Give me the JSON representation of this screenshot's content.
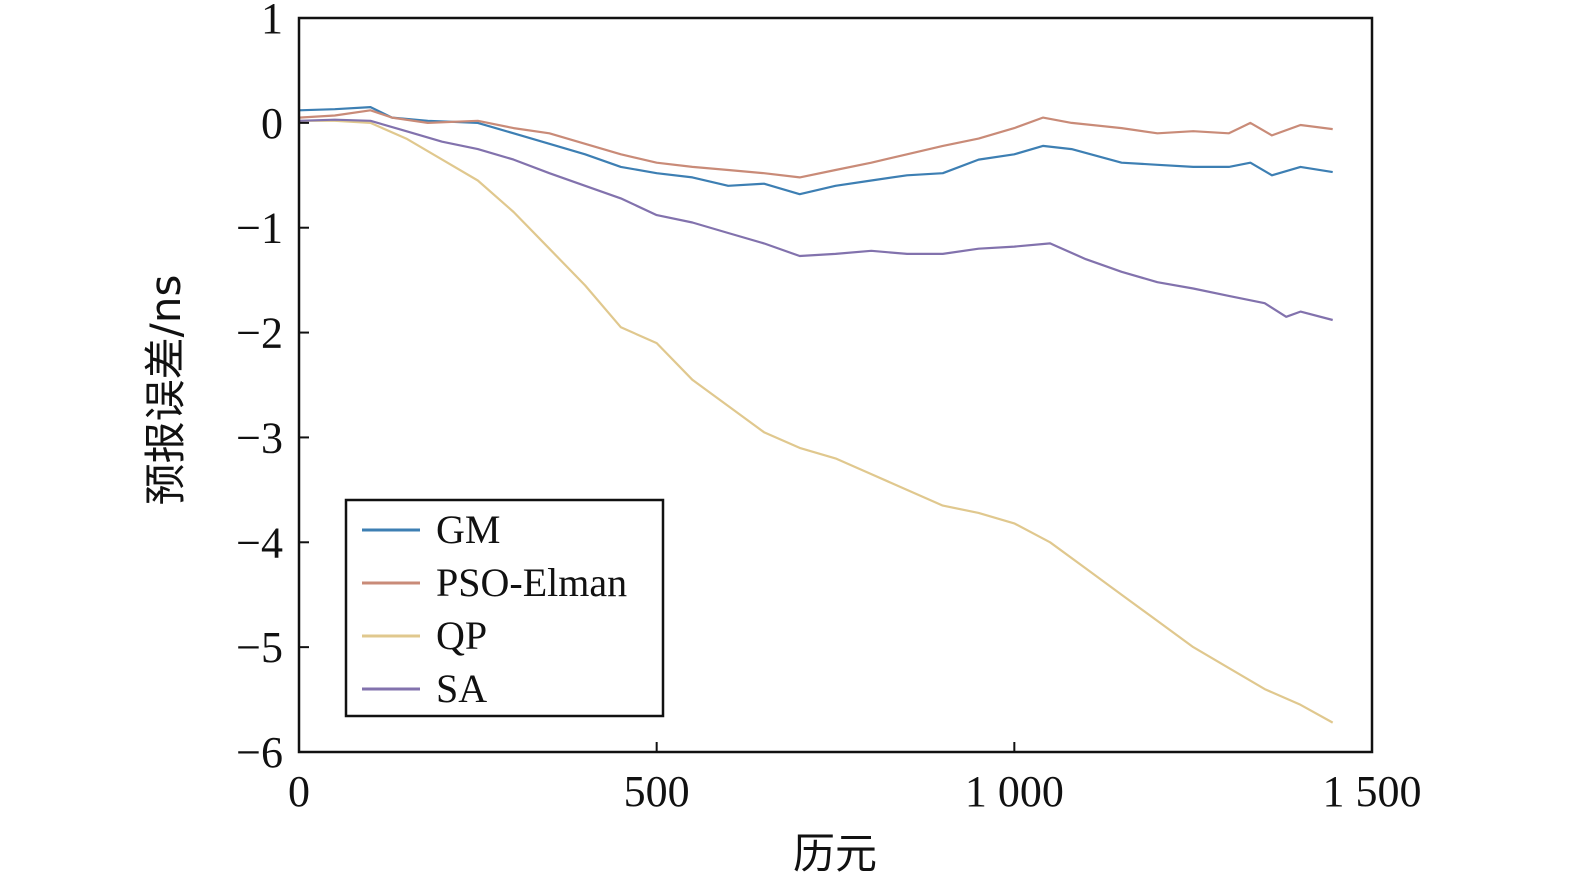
{
  "chart_data": {
    "type": "line",
    "title": "",
    "xlabel": "历元",
    "ylabel": "预报误差/ns",
    "xlim": [
      0,
      1500
    ],
    "ylim": [
      -6,
      1
    ],
    "x_ticks": [
      {
        "value": 0,
        "label": "0"
      },
      {
        "value": 500,
        "label": "500"
      },
      {
        "value": 1000,
        "label": "1 000"
      },
      {
        "value": 1500,
        "label": "1 500"
      }
    ],
    "y_ticks": [
      {
        "value": 1,
        "label": "1"
      },
      {
        "value": 0,
        "label": "0"
      },
      {
        "value": -1,
        "label": "−1"
      },
      {
        "value": -2,
        "label": "−2"
      },
      {
        "value": -3,
        "label": "−3"
      },
      {
        "value": -4,
        "label": "−4"
      },
      {
        "value": -5,
        "label": "−5"
      },
      {
        "value": -6,
        "label": "−6"
      }
    ],
    "grid": false,
    "legend_position": "bottom-left",
    "series": [
      {
        "name": "GM",
        "color": "#3d7fb3",
        "x": [
          0,
          50,
          100,
          130,
          180,
          250,
          300,
          350,
          400,
          450,
          500,
          550,
          600,
          650,
          700,
          750,
          800,
          850,
          900,
          950,
          1000,
          1040,
          1080,
          1150,
          1200,
          1250,
          1300,
          1330,
          1360,
          1400,
          1445
        ],
        "y": [
          0.12,
          0.13,
          0.15,
          0.05,
          0.02,
          0.0,
          -0.1,
          -0.2,
          -0.3,
          -0.42,
          -0.48,
          -0.52,
          -0.6,
          -0.58,
          -0.68,
          -0.6,
          -0.55,
          -0.5,
          -0.48,
          -0.35,
          -0.3,
          -0.22,
          -0.25,
          -0.38,
          -0.4,
          -0.42,
          -0.42,
          -0.38,
          -0.5,
          -0.42,
          -0.47
        ]
      },
      {
        "name": "PSO-Elman",
        "color": "#c98b78",
        "x": [
          0,
          50,
          100,
          130,
          180,
          250,
          300,
          350,
          400,
          450,
          500,
          550,
          600,
          650,
          700,
          750,
          800,
          850,
          900,
          950,
          1000,
          1040,
          1080,
          1150,
          1200,
          1250,
          1300,
          1330,
          1360,
          1400,
          1445
        ],
        "y": [
          0.05,
          0.07,
          0.12,
          0.05,
          0.0,
          0.02,
          -0.05,
          -0.1,
          -0.2,
          -0.3,
          -0.38,
          -0.42,
          -0.45,
          -0.48,
          -0.52,
          -0.45,
          -0.38,
          -0.3,
          -0.22,
          -0.15,
          -0.05,
          0.05,
          0.0,
          -0.05,
          -0.1,
          -0.08,
          -0.1,
          0.0,
          -0.12,
          -0.02,
          -0.06
        ]
      },
      {
        "name": "QP",
        "color": "#e0c88e",
        "x": [
          0,
          50,
          100,
          150,
          200,
          250,
          300,
          350,
          400,
          450,
          500,
          550,
          600,
          650,
          700,
          750,
          800,
          850,
          900,
          950,
          1000,
          1050,
          1100,
          1150,
          1200,
          1250,
          1300,
          1350,
          1400,
          1445
        ],
        "y": [
          0.02,
          0.02,
          0.0,
          -0.15,
          -0.35,
          -0.55,
          -0.85,
          -1.2,
          -1.55,
          -1.95,
          -2.1,
          -2.45,
          -2.7,
          -2.95,
          -3.1,
          -3.2,
          -3.35,
          -3.5,
          -3.65,
          -3.72,
          -3.82,
          -4.0,
          -4.25,
          -4.5,
          -4.75,
          -5.0,
          -5.2,
          -5.4,
          -5.55,
          -5.72
        ]
      },
      {
        "name": "SA",
        "color": "#8272ad",
        "x": [
          0,
          50,
          100,
          150,
          200,
          250,
          300,
          350,
          400,
          450,
          500,
          550,
          600,
          650,
          700,
          750,
          800,
          850,
          900,
          950,
          1000,
          1050,
          1100,
          1150,
          1200,
          1250,
          1300,
          1350,
          1380,
          1400,
          1445
        ],
        "y": [
          0.02,
          0.03,
          0.02,
          -0.08,
          -0.18,
          -0.25,
          -0.35,
          -0.48,
          -0.6,
          -0.72,
          -0.88,
          -0.95,
          -1.05,
          -1.15,
          -1.27,
          -1.25,
          -1.22,
          -1.25,
          -1.25,
          -1.2,
          -1.18,
          -1.15,
          -1.3,
          -1.42,
          -1.52,
          -1.58,
          -1.65,
          -1.72,
          -1.85,
          -1.8,
          -1.88
        ]
      }
    ]
  }
}
